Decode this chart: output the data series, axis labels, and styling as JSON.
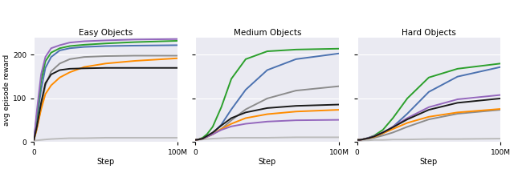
{
  "titles": [
    "Easy Objects",
    "Medium Objects",
    "Hard Objects"
  ],
  "xlabel": "Step",
  "ylabel": "avg episode reward",
  "xticks": [
    0,
    100000000
  ],
  "xticklabels": [
    "0",
    "100M"
  ],
  "curves": {
    "Easy Objects": {
      "RxR": {
        "x": [
          0,
          2,
          5,
          8,
          12,
          18,
          25,
          35,
          50,
          70,
          100
        ],
        "y": [
          5,
          50,
          120,
          170,
          195,
          210,
          215,
          218,
          220,
          221,
          222
        ]
      },
      "RxR_IPT": {
        "x": [
          0,
          2,
          5,
          8,
          12,
          18,
          25,
          35,
          50,
          70,
          100
        ],
        "y": [
          5,
          60,
          140,
          185,
          205,
          215,
          220,
          223,
          226,
          229,
          232
        ]
      },
      "SGS": {
        "x": [
          0,
          2,
          5,
          8,
          12,
          18,
          25,
          35,
          50,
          70,
          100
        ],
        "y": [
          5,
          30,
          80,
          130,
          162,
          180,
          190,
          195,
          197,
          198,
          198
        ]
      },
      "ER": {
        "x": [
          0,
          2,
          5,
          8,
          12,
          18,
          25,
          35,
          50,
          70,
          100
        ],
        "y": [
          3,
          4,
          5,
          6,
          7,
          8,
          9,
          9,
          10,
          10,
          10
        ]
      },
      "FI": {
        "x": [
          0,
          2,
          5,
          8,
          12,
          18,
          25,
          35,
          50,
          70,
          100
        ],
        "y": [
          5,
          30,
          75,
          110,
          130,
          148,
          160,
          172,
          180,
          186,
          192
        ]
      },
      "FI_IPT": {
        "x": [
          0,
          2,
          5,
          8,
          12,
          18,
          25,
          35,
          50,
          70,
          100
        ],
        "y": [
          5,
          70,
          155,
          195,
          215,
          222,
          228,
          231,
          233,
          235,
          236
        ]
      },
      "GC": {
        "x": [
          0,
          2,
          5,
          8,
          12,
          18,
          25,
          35,
          50,
          70,
          100
        ],
        "y": [
          5,
          35,
          90,
          135,
          155,
          165,
          168,
          169,
          170,
          170,
          170
        ]
      }
    },
    "Medium Objects": {
      "RxR": {
        "x": [
          0,
          2,
          5,
          8,
          12,
          18,
          25,
          35,
          50,
          70,
          100
        ],
        "y": [
          5,
          6,
          8,
          12,
          20,
          40,
          75,
          120,
          165,
          190,
          203
        ]
      },
      "RxR_IPT": {
        "x": [
          0,
          2,
          5,
          8,
          12,
          18,
          25,
          35,
          50,
          70,
          100
        ],
        "y": [
          5,
          6,
          10,
          18,
          35,
          80,
          145,
          190,
          208,
          212,
          214
        ]
      },
      "SGS": {
        "x": [
          0,
          2,
          5,
          8,
          12,
          18,
          25,
          35,
          50,
          70,
          100
        ],
        "y": [
          5,
          6,
          8,
          12,
          18,
          30,
          50,
          75,
          100,
          118,
          128
        ]
      },
      "ER": {
        "x": [
          0,
          2,
          5,
          8,
          12,
          18,
          25,
          35,
          50,
          70,
          100
        ],
        "y": [
          5,
          5,
          6,
          7,
          8,
          9,
          10,
          10,
          10,
          11,
          11
        ]
      },
      "FI": {
        "x": [
          0,
          2,
          5,
          8,
          12,
          18,
          25,
          35,
          50,
          70,
          100
        ],
        "y": [
          5,
          6,
          8,
          12,
          18,
          30,
          42,
          55,
          64,
          70,
          74
        ]
      },
      "FI_IPT": {
        "x": [
          0,
          2,
          5,
          8,
          12,
          18,
          25,
          35,
          50,
          70,
          100
        ],
        "y": [
          5,
          6,
          8,
          12,
          18,
          28,
          36,
          42,
          47,
          50,
          51
        ]
      },
      "GC": {
        "x": [
          0,
          2,
          5,
          8,
          12,
          18,
          25,
          35,
          50,
          70,
          100
        ],
        "y": [
          5,
          6,
          8,
          14,
          22,
          38,
          55,
          68,
          78,
          83,
          86
        ]
      }
    },
    "Hard Objects": {
      "RxR": {
        "x": [
          0,
          2,
          5,
          8,
          12,
          18,
          25,
          35,
          50,
          70,
          100
        ],
        "y": [
          5,
          5,
          7,
          9,
          12,
          20,
          35,
          65,
          115,
          150,
          172
        ]
      },
      "RxR_IPT": {
        "x": [
          0,
          2,
          5,
          8,
          12,
          18,
          25,
          35,
          50,
          70,
          100
        ],
        "y": [
          5,
          5,
          7,
          10,
          15,
          28,
          55,
          100,
          148,
          168,
          180
        ]
      },
      "SGS": {
        "x": [
          0,
          2,
          5,
          8,
          12,
          18,
          25,
          35,
          50,
          70,
          100
        ],
        "y": [
          5,
          5,
          6,
          8,
          10,
          15,
          22,
          35,
          52,
          65,
          74
        ]
      },
      "ER": {
        "x": [
          0,
          2,
          5,
          8,
          12,
          18,
          25,
          35,
          50,
          70,
          100
        ],
        "y": [
          3,
          3,
          4,
          4,
          5,
          5,
          6,
          6,
          7,
          7,
          8
        ]
      },
      "FI": {
        "x": [
          0,
          2,
          5,
          8,
          12,
          18,
          25,
          35,
          50,
          70,
          100
        ],
        "y": [
          5,
          5,
          7,
          9,
          12,
          20,
          30,
          44,
          58,
          68,
          76
        ]
      },
      "FI_IPT": {
        "x": [
          0,
          2,
          5,
          8,
          12,
          18,
          25,
          35,
          50,
          70,
          100
        ],
        "y": [
          5,
          5,
          7,
          10,
          14,
          22,
          35,
          55,
          80,
          98,
          108
        ]
      },
      "GC": {
        "x": [
          0,
          2,
          5,
          8,
          12,
          18,
          25,
          35,
          50,
          70,
          100
        ],
        "y": [
          5,
          5,
          7,
          9,
          13,
          22,
          34,
          52,
          74,
          90,
          100
        ]
      }
    }
  },
  "colors": {
    "RxR": "#4C72B0",
    "RxR_IPT": "#2CA02C",
    "SGS": "#8C8C8C",
    "ER": "#BBBBBB",
    "FI": "#FF8C00",
    "FI_IPT": "#9467BD",
    "GC": "#1A1A1A"
  },
  "bg_color": "#EAEAF2",
  "ylim": [
    0,
    240
  ],
  "yticks": [
    0,
    100,
    200
  ],
  "figsize": [
    6.4,
    2.11
  ],
  "dpi": 100
}
